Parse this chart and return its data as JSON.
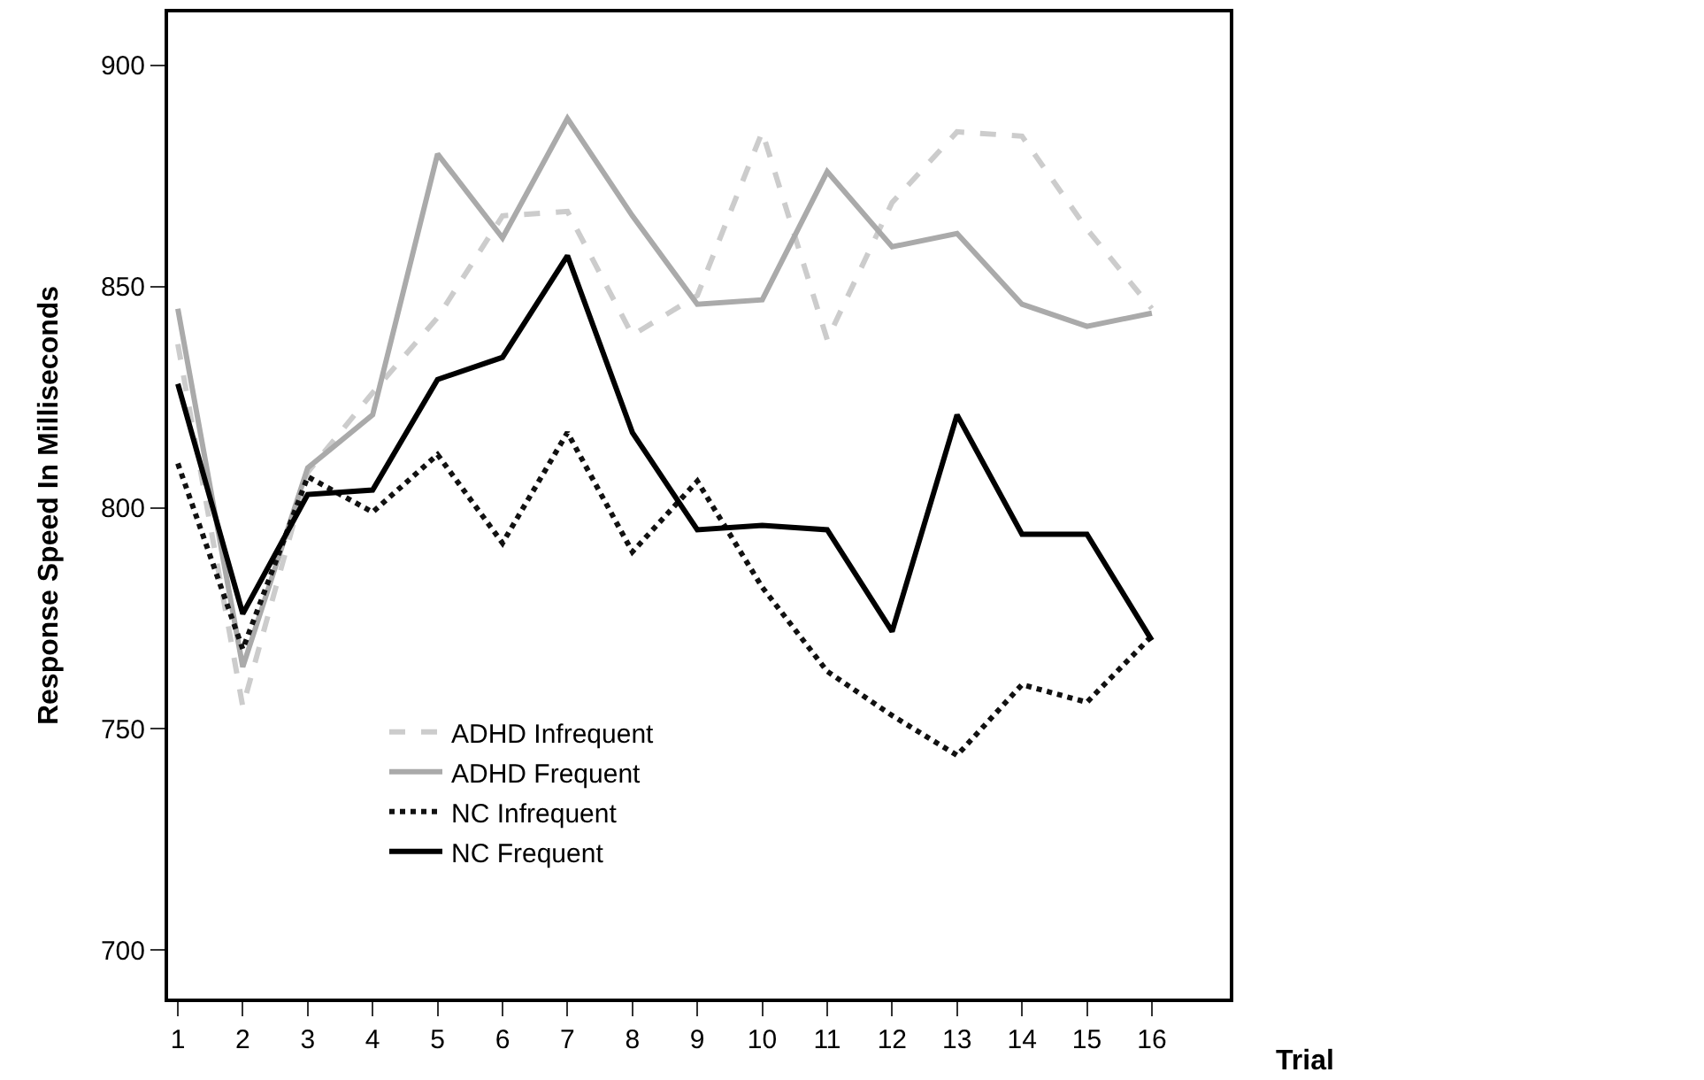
{
  "chart_data": {
    "type": "line",
    "xlabel": "Trial",
    "ylabel": "Response Speed In Milliseconds",
    "x": [
      1,
      2,
      3,
      4,
      5,
      6,
      7,
      8,
      9,
      10,
      11,
      12,
      13,
      14,
      15,
      16
    ],
    "xlim": [
      0.85,
      17.2
    ],
    "xticks": [
      1,
      2,
      3,
      4,
      5,
      6,
      7,
      8,
      9,
      10,
      11,
      12,
      13,
      14,
      15,
      16
    ],
    "ylim": [
      689,
      912
    ],
    "yticks": [
      700,
      750,
      800,
      850,
      900
    ],
    "legend": "bottom left",
    "marker": "none",
    "series": [
      {
        "name": "ADHD Infrequent",
        "color": "#cccccc",
        "line_style": "dashed",
        "values": [
          837,
          755,
          808,
          826,
          843,
          866,
          867,
          839,
          848,
          885,
          838,
          869,
          885,
          884,
          863,
          845
        ]
      },
      {
        "name": "ADHD Frequent",
        "color": "#aaaaaa",
        "line_style": "solid",
        "values": [
          845,
          764,
          809,
          821,
          880,
          861,
          888,
          866,
          846,
          847,
          876,
          859,
          862,
          846,
          841,
          844
        ]
      },
      {
        "name": "NC Infrequent",
        "color": "#111111",
        "line_style": "dotted",
        "values": [
          810,
          768,
          807,
          799,
          812,
          792,
          817,
          790,
          806,
          782,
          763,
          753,
          744,
          760,
          756,
          771
        ]
      },
      {
        "name": "NC Frequent",
        "color": "#000000",
        "line_style": "solid",
        "values": [
          828,
          776,
          803,
          804,
          829,
          834,
          857,
          817,
          795,
          796,
          795,
          772,
          821,
          794,
          794,
          770
        ]
      }
    ]
  }
}
